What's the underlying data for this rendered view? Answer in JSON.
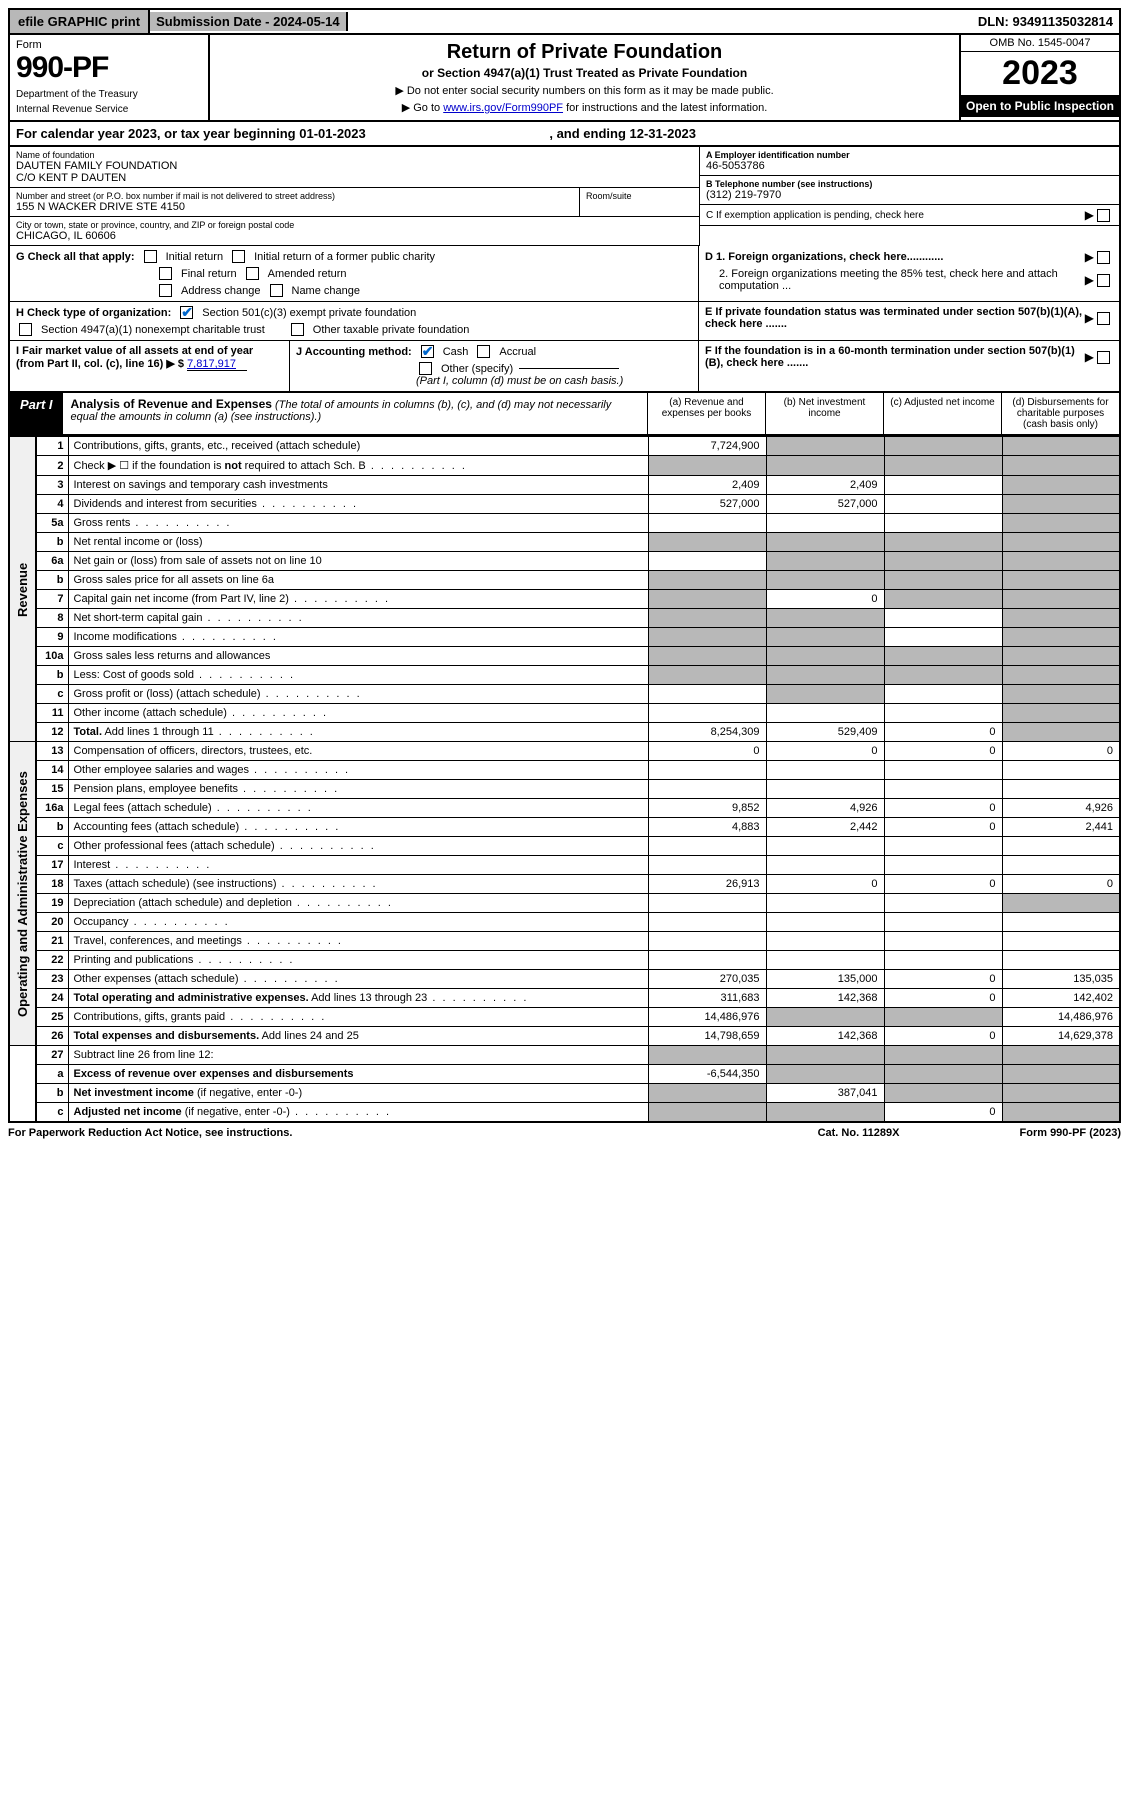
{
  "topbar": {
    "efile": "efile GRAPHIC print",
    "submission": "Submission Date - 2024-05-14",
    "dln": "DLN: 93491135032814"
  },
  "header": {
    "form_label": "Form",
    "form_number": "990-PF",
    "dept1": "Department of the Treasury",
    "dept2": "Internal Revenue Service",
    "title": "Return of Private Foundation",
    "subtitle": "or Section 4947(a)(1) Trust Treated as Private Foundation",
    "instr1": "▶ Do not enter social security numbers on this form as it may be made public.",
    "instr2_pre": "▶ Go to ",
    "instr2_link": "www.irs.gov/Form990PF",
    "instr2_post": " for instructions and the latest information.",
    "omb": "OMB No. 1545-0047",
    "year": "2023",
    "open": "Open to Public Inspection"
  },
  "calyear": {
    "text_pre": "For calendar year 2023, or tax year beginning ",
    "begin": "01-01-2023",
    "text_mid": " , and ending ",
    "end": "12-31-2023"
  },
  "info": {
    "name_lbl": "Name of foundation",
    "name1": "DAUTEN FAMILY FOUNDATION",
    "name2": "C/O KENT P DAUTEN",
    "addr_lbl": "Number and street (or P.O. box number if mail is not delivered to street address)",
    "addr": "155 N WACKER DRIVE STE 4150",
    "room_lbl": "Room/suite",
    "city_lbl": "City or town, state or province, country, and ZIP or foreign postal code",
    "city": "CHICAGO, IL  60606",
    "ein_lbl": "A Employer identification number",
    "ein": "46-5053786",
    "tel_lbl": "B Telephone number (see instructions)",
    "tel": "(312) 219-7970",
    "c_lbl": "C If exemption application is pending, check here",
    "d1_lbl": "D 1. Foreign organizations, check here............",
    "d2_lbl": "2. Foreign organizations meeting the 85% test, check here and attach computation ...",
    "e_lbl": "E  If private foundation status was terminated under section 507(b)(1)(A), check here .......",
    "f_lbl": "F  If the foundation is in a 60-month termination under section 507(b)(1)(B), check here ......."
  },
  "checks": {
    "g_lbl": "G Check all that apply:",
    "g1": "Initial return",
    "g2": "Initial return of a former public charity",
    "g3": "Final return",
    "g4": "Amended return",
    "g5": "Address change",
    "g6": "Name change",
    "h_lbl": "H Check type of organization:",
    "h1": "Section 501(c)(3) exempt private foundation",
    "h2": "Section 4947(a)(1) nonexempt charitable trust",
    "h3": "Other taxable private foundation",
    "i_lbl": "I Fair market value of all assets at end of year (from Part II, col. (c), line 16) ▶ $",
    "i_val": "7,817,917",
    "j_lbl": "J Accounting method:",
    "j1": "Cash",
    "j2": "Accrual",
    "j3": "Other (specify)",
    "j_note": "(Part I, column (d) must be on cash basis.)"
  },
  "part1": {
    "badge": "Part I",
    "title": "Analysis of Revenue and Expenses",
    "note": " (The total of amounts in columns (b), (c), and (d) may not necessarily equal the amounts in column (a) (see instructions).)",
    "col_a": "(a) Revenue and expenses per books",
    "col_b": "(b) Net investment income",
    "col_c": "(c) Adjusted net income",
    "col_d": "(d) Disbursements for charitable purposes (cash basis only)"
  },
  "sidebars": {
    "rev": "Revenue",
    "exp": "Operating and Administrative Expenses"
  },
  "rows": [
    {
      "n": "1",
      "d": "",
      "a": "7,724,900",
      "b": "",
      "c": "",
      "shade_b": true,
      "shade_c": true,
      "shade_d": true
    },
    {
      "n": "2",
      "d": "",
      "a": "",
      "b": "",
      "c": "",
      "shade_a": true,
      "shade_b": true,
      "shade_c": true,
      "shade_d": true,
      "dots": true
    },
    {
      "n": "3",
      "d": "",
      "a": "2,409",
      "b": "2,409",
      "c": "",
      "shade_d": true
    },
    {
      "n": "4",
      "d": "",
      "a": "527,000",
      "b": "527,000",
      "c": "",
      "shade_d": true,
      "dots": true
    },
    {
      "n": "5a",
      "d": "",
      "a": "",
      "b": "",
      "c": "",
      "shade_d": true,
      "dots": true
    },
    {
      "n": "b",
      "d": "",
      "a": "",
      "b": "",
      "c": "",
      "shade_a": true,
      "shade_b": true,
      "shade_c": true,
      "shade_d": true
    },
    {
      "n": "6a",
      "d": "",
      "a": "",
      "b": "",
      "c": "",
      "shade_b": true,
      "shade_c": true,
      "shade_d": true
    },
    {
      "n": "b",
      "d": "",
      "a": "",
      "b": "",
      "c": "",
      "shade_a": true,
      "shade_b": true,
      "shade_c": true,
      "shade_d": true
    },
    {
      "n": "7",
      "d": "",
      "a": "",
      "b": "0",
      "c": "",
      "shade_a": true,
      "shade_c": true,
      "shade_d": true,
      "dots": true
    },
    {
      "n": "8",
      "d": "",
      "a": "",
      "b": "",
      "c": "",
      "shade_a": true,
      "shade_b": true,
      "shade_d": true,
      "dots": true
    },
    {
      "n": "9",
      "d": "",
      "a": "",
      "b": "",
      "c": "",
      "shade_a": true,
      "shade_b": true,
      "shade_d": true,
      "dots": true
    },
    {
      "n": "10a",
      "d": "",
      "a": "",
      "b": "",
      "c": "",
      "shade_a": true,
      "shade_b": true,
      "shade_c": true,
      "shade_d": true
    },
    {
      "n": "b",
      "d": "",
      "a": "",
      "b": "",
      "c": "",
      "shade_a": true,
      "shade_b": true,
      "shade_c": true,
      "shade_d": true,
      "dots": true
    },
    {
      "n": "c",
      "d": "",
      "a": "",
      "b": "",
      "c": "",
      "shade_b": true,
      "shade_d": true,
      "dots": true
    },
    {
      "n": "11",
      "d": "",
      "a": "",
      "b": "",
      "c": "",
      "shade_d": true,
      "dots": true
    },
    {
      "n": "12",
      "d": "",
      "a": "8,254,309",
      "b": "529,409",
      "c": "0",
      "bold": true,
      "shade_d": true,
      "dots": true
    },
    {
      "n": "13",
      "d": "0",
      "a": "0",
      "b": "0",
      "c": "0"
    },
    {
      "n": "14",
      "d": "",
      "a": "",
      "b": "",
      "c": "",
      "dots": true
    },
    {
      "n": "15",
      "d": "",
      "a": "",
      "b": "",
      "c": "",
      "dots": true
    },
    {
      "n": "16a",
      "d": "4,926",
      "a": "9,852",
      "b": "4,926",
      "c": "0",
      "dots": true
    },
    {
      "n": "b",
      "d": "2,441",
      "a": "4,883",
      "b": "2,442",
      "c": "0",
      "dots": true
    },
    {
      "n": "c",
      "d": "",
      "a": "",
      "b": "",
      "c": "",
      "dots": true
    },
    {
      "n": "17",
      "d": "",
      "a": "",
      "b": "",
      "c": "",
      "dots": true
    },
    {
      "n": "18",
      "d": "0",
      "a": "26,913",
      "b": "0",
      "c": "0",
      "dots": true
    },
    {
      "n": "19",
      "d": "",
      "a": "",
      "b": "",
      "c": "",
      "shade_d": true,
      "dots": true
    },
    {
      "n": "20",
      "d": "",
      "a": "",
      "b": "",
      "c": "",
      "dots": true
    },
    {
      "n": "21",
      "d": "",
      "a": "",
      "b": "",
      "c": "",
      "dots": true
    },
    {
      "n": "22",
      "d": "",
      "a": "",
      "b": "",
      "c": "",
      "dots": true
    },
    {
      "n": "23",
      "d": "135,035",
      "a": "270,035",
      "b": "135,000",
      "c": "0",
      "dots": true
    },
    {
      "n": "24",
      "d": "142,402",
      "a": "311,683",
      "b": "142,368",
      "c": "0",
      "bold": true,
      "dots": true
    },
    {
      "n": "25",
      "d": "14,486,976",
      "a": "14,486,976",
      "b": "",
      "c": "",
      "shade_b": true,
      "shade_c": true,
      "dots": true
    },
    {
      "n": "26",
      "d": "14,629,378",
      "a": "14,798,659",
      "b": "142,368",
      "c": "0",
      "bold": true
    },
    {
      "n": "27",
      "d": "",
      "a": "",
      "b": "",
      "c": "",
      "shade_a": true,
      "shade_b": true,
      "shade_c": true,
      "shade_d": true
    },
    {
      "n": "a",
      "d": "",
      "a": "-6,544,350",
      "b": "",
      "c": "",
      "bold": true,
      "shade_b": true,
      "shade_c": true,
      "shade_d": true
    },
    {
      "n": "b",
      "d": "",
      "a": "",
      "b": "387,041",
      "c": "",
      "bold": true,
      "shade_a": true,
      "shade_c": true,
      "shade_d": true
    },
    {
      "n": "c",
      "d": "",
      "a": "",
      "b": "",
      "c": "0",
      "bold": true,
      "shade_a": true,
      "shade_b": true,
      "shade_d": true,
      "dots": true
    }
  ],
  "footer": {
    "left": "For Paperwork Reduction Act Notice, see instructions.",
    "mid": "Cat. No. 11289X",
    "right": "Form 990-PF (2023)"
  }
}
